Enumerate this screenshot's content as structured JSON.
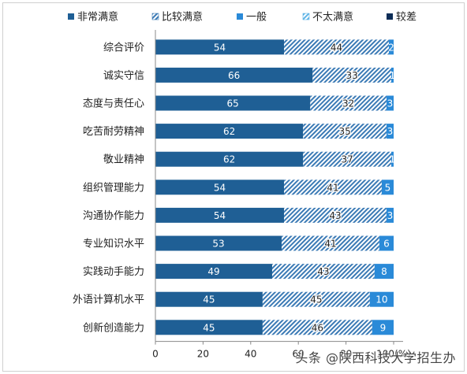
{
  "chart_data": {
    "type": "bar",
    "stacked": true,
    "orientation": "horizontal",
    "categories": [
      "综合评价",
      "诚实守信",
      "态度与责任心",
      "吃苦耐劳精神",
      "敬业精神",
      "组织管理能力",
      "沟通协作能力",
      "专业知识水平",
      "实践动手能力",
      "外语计算机水平",
      "创新创造能力"
    ],
    "series": [
      {
        "name": "非常满意",
        "values": [
          54,
          66,
          65,
          62,
          62,
          54,
          54,
          53,
          49,
          45,
          45
        ],
        "color": "#1f5f95",
        "pattern": "solid"
      },
      {
        "name": "比较满意",
        "values": [
          44,
          33,
          32,
          35,
          37,
          41,
          43,
          41,
          43,
          45,
          46
        ],
        "color": "#3b7ab5",
        "pattern": "hatch"
      },
      {
        "name": "一般",
        "values": [
          2,
          1,
          3,
          3,
          1,
          5,
          3,
          6,
          8,
          10,
          9
        ],
        "color": "#2a8ad8",
        "pattern": "solid"
      },
      {
        "name": "不太满意",
        "values": [
          0,
          0,
          0,
          0,
          0,
          0,
          0,
          0,
          0,
          0,
          0
        ],
        "color": "#5fb4e6",
        "pattern": "hatch"
      },
      {
        "name": "较差",
        "values": [
          0,
          0,
          0,
          0,
          0,
          0,
          0,
          0,
          0,
          0,
          0
        ],
        "color": "#0d2d57",
        "pattern": "solid"
      }
    ],
    "data_labels": [
      [
        "54",
        "44",
        "2"
      ],
      [
        "66",
        "33",
        "1"
      ],
      [
        "65",
        "32",
        "3"
      ],
      [
        "62",
        "35",
        "3"
      ],
      [
        "62",
        "37",
        "1"
      ],
      [
        "54",
        "41",
        "5"
      ],
      [
        "54",
        "43",
        "3"
      ],
      [
        "53",
        "41",
        "6"
      ],
      [
        "49",
        "43",
        "8"
      ],
      [
        "45",
        "45",
        "10"
      ],
      [
        "45",
        "46",
        "9"
      ]
    ],
    "xticks": [
      "0",
      "20",
      "40",
      "60",
      "80",
      "100(%)"
    ],
    "xlim": [
      0,
      100
    ],
    "legend_position": "top",
    "grid": false
  },
  "watermark": "头条 @陕西科技大学招生办"
}
